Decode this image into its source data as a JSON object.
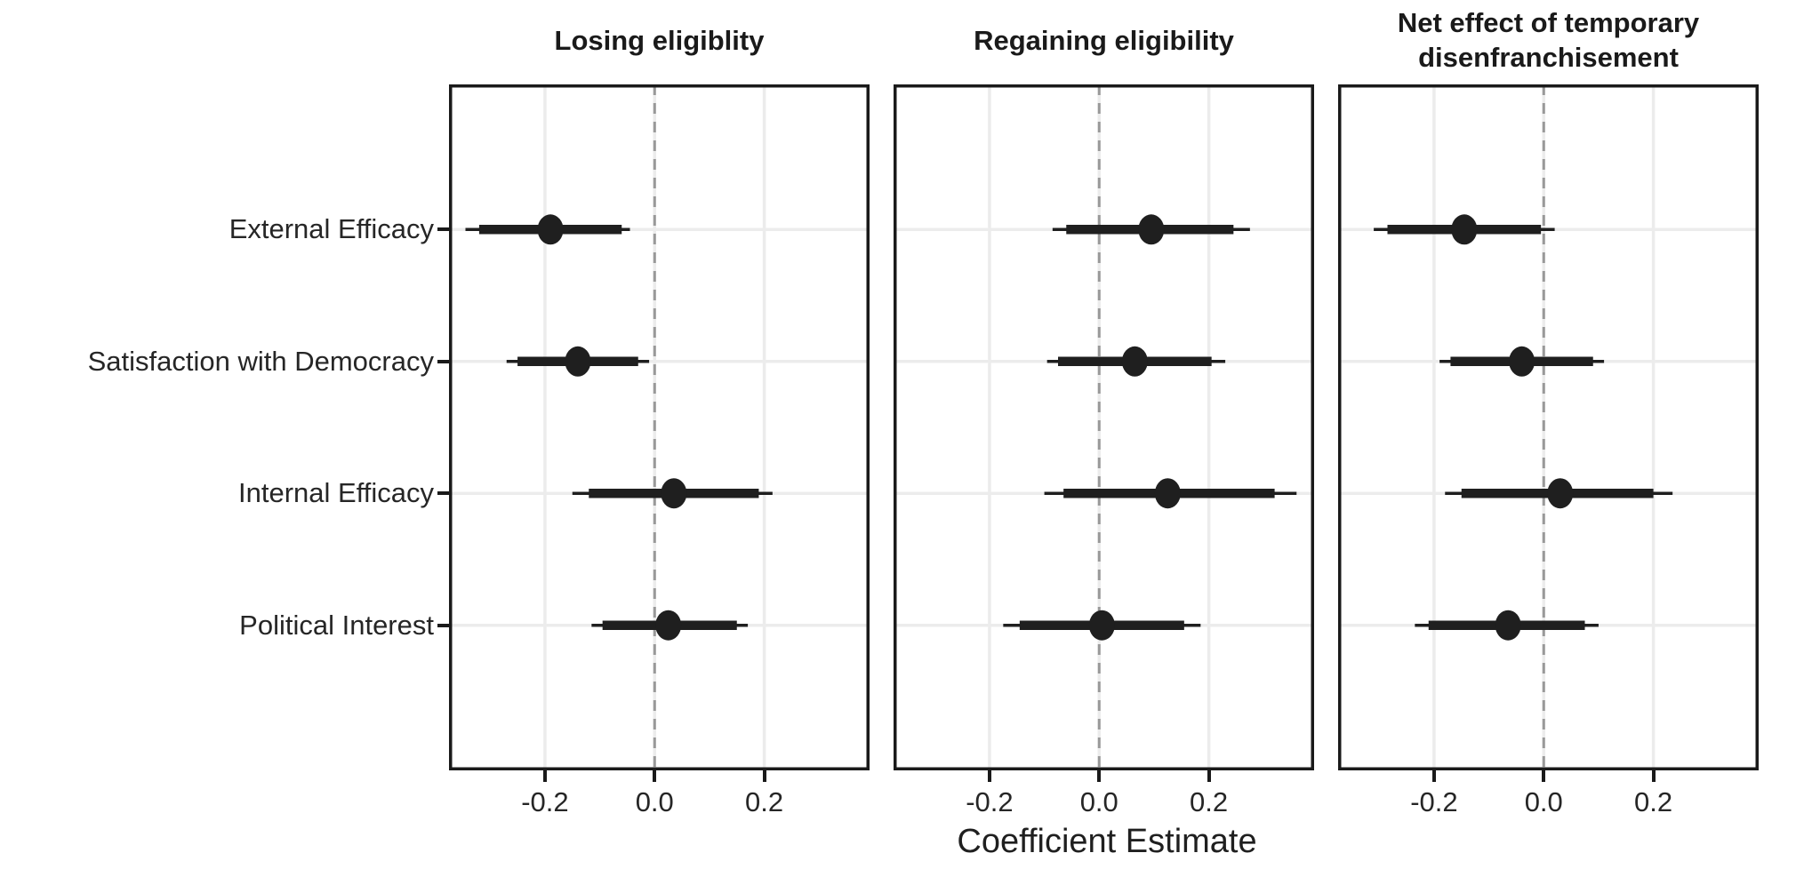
{
  "chart_data": {
    "type": "scatter",
    "subtype": "coefficient-forest-plot",
    "xlabel": "Coefficient Estimate",
    "categories": [
      "External Efficacy",
      "Satisfaction with Democracy",
      "Internal Efficacy",
      "Political Interest"
    ],
    "x_tick_labels": [
      "-0.2",
      "0.0",
      "0.2"
    ],
    "x_tick_values": [
      -0.2,
      0.0,
      0.2
    ],
    "xlim": [
      -0.375,
      0.392
    ],
    "zero_reference_line": 0.0,
    "grid": "major-only",
    "legend": "none",
    "panels": [
      {
        "title": "Losing eligiblity",
        "series": [
          {
            "category": "External Efficacy",
            "estimate": -0.19,
            "ci_thick": [
              -0.32,
              -0.06
            ],
            "ci_thin": [
              -0.345,
              -0.045
            ]
          },
          {
            "category": "Satisfaction with Democracy",
            "estimate": -0.14,
            "ci_thick": [
              -0.25,
              -0.03
            ],
            "ci_thin": [
              -0.27,
              -0.01
            ]
          },
          {
            "category": "Internal Efficacy",
            "estimate": 0.035,
            "ci_thick": [
              -0.12,
              0.19
            ],
            "ci_thin": [
              -0.15,
              0.215
            ]
          },
          {
            "category": "Political Interest",
            "estimate": 0.025,
            "ci_thick": [
              -0.095,
              0.15
            ],
            "ci_thin": [
              -0.115,
              0.17
            ]
          }
        ]
      },
      {
        "title": "Regaining eligibility",
        "series": [
          {
            "category": "External Efficacy",
            "estimate": 0.095,
            "ci_thick": [
              -0.06,
              0.245
            ],
            "ci_thin": [
              -0.085,
              0.275
            ]
          },
          {
            "category": "Satisfaction with Democracy",
            "estimate": 0.065,
            "ci_thick": [
              -0.075,
              0.205
            ],
            "ci_thin": [
              -0.095,
              0.23
            ]
          },
          {
            "category": "Internal Efficacy",
            "estimate": 0.125,
            "ci_thick": [
              -0.065,
              0.32
            ],
            "ci_thin": [
              -0.1,
              0.36
            ]
          },
          {
            "category": "Political Interest",
            "estimate": 0.005,
            "ci_thick": [
              -0.145,
              0.155
            ],
            "ci_thin": [
              -0.175,
              0.185
            ]
          }
        ]
      },
      {
        "title": "Net effect of temporary disenfranchisement",
        "series": [
          {
            "category": "External Efficacy",
            "estimate": -0.145,
            "ci_thick": [
              -0.285,
              -0.005
            ],
            "ci_thin": [
              -0.31,
              0.02
            ]
          },
          {
            "category": "Satisfaction with Democracy",
            "estimate": -0.04,
            "ci_thick": [
              -0.17,
              0.09
            ],
            "ci_thin": [
              -0.19,
              0.11
            ]
          },
          {
            "category": "Internal Efficacy",
            "estimate": 0.03,
            "ci_thick": [
              -0.15,
              0.2
            ],
            "ci_thin": [
              -0.18,
              0.235
            ]
          },
          {
            "category": "Political Interest",
            "estimate": -0.065,
            "ci_thick": [
              -0.21,
              0.075
            ],
            "ci_thin": [
              -0.235,
              0.1
            ]
          }
        ]
      }
    ],
    "colors": {
      "point": "#1f1f1f",
      "interval": "#1f1f1f",
      "zero_line": "#999999",
      "grid": "#ececec",
      "panel_border": "#1a1a1a",
      "text": "#262626",
      "background": "#ffffff"
    }
  }
}
